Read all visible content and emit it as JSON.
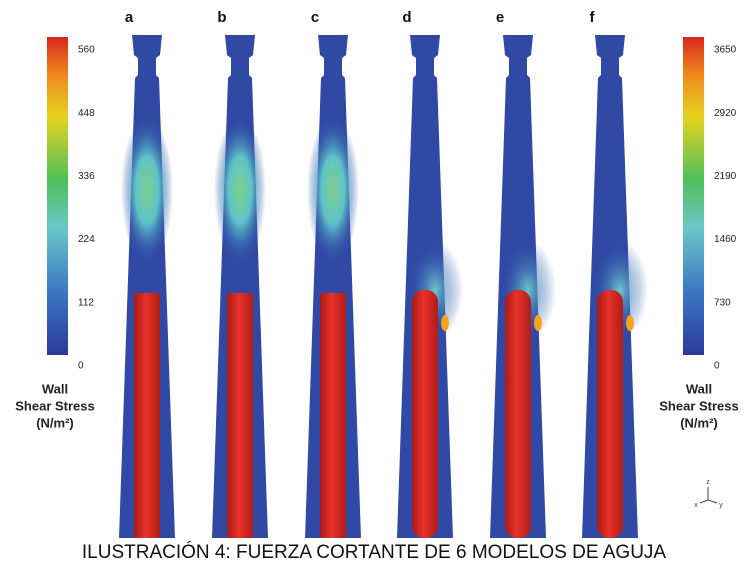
{
  "panels": [
    {
      "label": "a"
    },
    {
      "label": "b"
    },
    {
      "label": "c"
    },
    {
      "label": "d"
    },
    {
      "label": "e"
    },
    {
      "label": "f"
    }
  ],
  "colorbars": [
    {
      "side": "left",
      "range": [
        0,
        560
      ],
      "ticks": [
        0,
        112,
        224,
        336,
        448,
        560
      ],
      "title_lines": [
        "Wall",
        "Shear Stress",
        "(N/m²)"
      ]
    },
    {
      "side": "right",
      "range": [
        0,
        3650
      ],
      "ticks": [
        0,
        730,
        1460,
        2190,
        2920,
        3650
      ],
      "title_lines": [
        "Wall",
        "Shear Stress",
        "(N/m²)"
      ]
    }
  ],
  "axis_triad": [
    "z",
    "x",
    "y"
  ],
  "caption": "ILUSTRACIÓN 4: FUERZA CORTANTE DE 6 MODELOS DE AGUJA"
}
